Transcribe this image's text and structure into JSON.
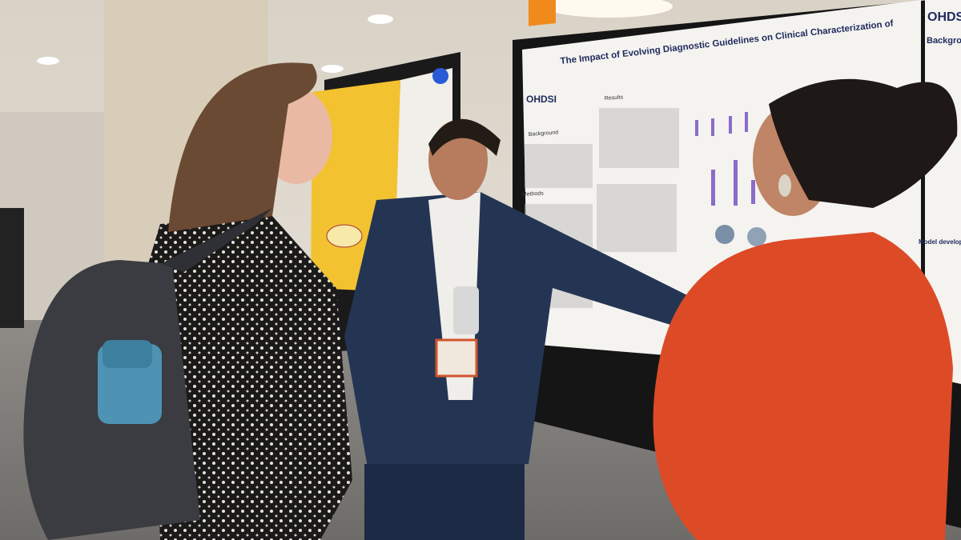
{
  "posters": [
    {
      "logo": "OHDSI",
      "title": "The Impact of Evolving Diagnostic Guidelines on Clinical Characterization of",
      "sections": [
        "Background",
        "Results",
        "Methods"
      ]
    },
    {
      "logo": "OHDSI",
      "sections": [
        "Backgroun",
        "Model developme"
      ]
    }
  ]
}
